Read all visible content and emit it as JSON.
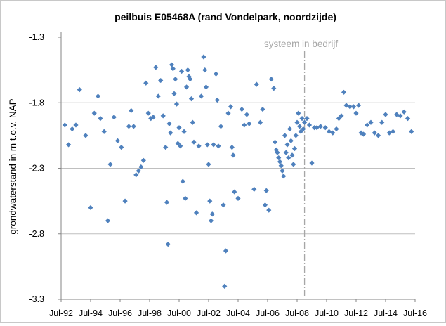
{
  "chart_data": {
    "type": "scatter",
    "title": "peilbuis E05468A (rand Vondelpark, noordzijde)",
    "xlabel": "",
    "ylabel": "grondwaterstand in m t.o.v. NAP",
    "xlim": [
      "1992-07-01",
      "2016-07-01"
    ],
    "ylim": [
      -3.3,
      -1.3
    ],
    "x_ticks": [
      "Jul-92",
      "Jul-94",
      "Jul-96",
      "Jul-98",
      "Jul-00",
      "Jul-02",
      "Jul-04",
      "Jul-06",
      "Jul-08",
      "Jul-10",
      "Jul-12",
      "Jul-14",
      "Jul-16"
    ],
    "y_ticks": [
      -1.3,
      -1.8,
      -2.3,
      -2.8,
      -3.3
    ],
    "y_tick_labels": [
      "-1.3",
      "-1.8",
      "-2.3",
      "-2.8",
      "-3.3"
    ],
    "grid": "horizontal",
    "legend": "none",
    "marker": "diamond",
    "marker_color": "#4f81bd",
    "annotation": {
      "label": "systeem in bedrijf",
      "x": "2009-01-01",
      "line_color": "#a6a6a6",
      "line_style": "dash-dot"
    },
    "series": [
      {
        "points": [
          [
            "1992-10-01",
            -1.97
          ],
          [
            "1993-01-01",
            -2.12
          ],
          [
            "1993-04-01",
            -2.0
          ],
          [
            "1993-07-01",
            -1.97
          ],
          [
            "1993-10-01",
            -1.7
          ],
          [
            "1994-03-01",
            -2.05
          ],
          [
            "1994-07-01",
            -2.6
          ],
          [
            "1994-10-01",
            -1.88
          ],
          [
            "1995-01-01",
            -1.75
          ],
          [
            "1995-03-01",
            -1.92
          ],
          [
            "1995-06-01",
            -2.02
          ],
          [
            "1995-09-01",
            -2.7
          ],
          [
            "1995-11-01",
            -2.27
          ],
          [
            "1996-02-01",
            -1.91
          ],
          [
            "1996-05-01",
            -2.09
          ],
          [
            "1996-08-01",
            -2.14
          ],
          [
            "1996-11-01",
            -2.55
          ],
          [
            "1997-02-01",
            -1.98
          ],
          [
            "1997-04-01",
            -1.86
          ],
          [
            "1997-06-01",
            -1.98
          ],
          [
            "1997-08-01",
            -2.35
          ],
          [
            "1997-10-01",
            -2.32
          ],
          [
            "1997-12-01",
            -2.29
          ],
          [
            "1998-02-01",
            -2.24
          ],
          [
            "1998-04-01",
            -1.65
          ],
          [
            "1998-06-01",
            -1.88
          ],
          [
            "1998-08-01",
            -1.92
          ],
          [
            "1998-10-01",
            -1.91
          ],
          [
            "1998-12-01",
            -1.53
          ],
          [
            "1999-02-01",
            -1.75
          ],
          [
            "1999-04-01",
            -1.63
          ],
          [
            "1999-06-01",
            -1.9
          ],
          [
            "1999-08-01",
            -2.14
          ],
          [
            "1999-09-01",
            -2.56
          ],
          [
            "1999-10-01",
            -2.88
          ],
          [
            "1999-11-01",
            -1.96
          ],
          [
            "1999-12-01",
            -2.03
          ],
          [
            "2000-01-01",
            -1.51
          ],
          [
            "2000-02-01",
            -1.54
          ],
          [
            "2000-03-01",
            -1.73
          ],
          [
            "2000-04-01",
            -1.62
          ],
          [
            "2000-05-01",
            -1.81
          ],
          [
            "2000-06-01",
            -2.11
          ],
          [
            "2000-07-01",
            -1.99
          ],
          [
            "2000-08-01",
            -2.13
          ],
          [
            "2000-09-01",
            -1.56
          ],
          [
            "2000-10-01",
            -2.4
          ],
          [
            "2000-11-01",
            -2.02
          ],
          [
            "2000-12-01",
            -2.53
          ],
          [
            "2001-01-01",
            -1.68
          ],
          [
            "2001-02-01",
            -1.55
          ],
          [
            "2001-03-01",
            -1.6
          ],
          [
            "2001-04-01",
            -1.62
          ],
          [
            "2001-05-01",
            -1.77
          ],
          [
            "2001-06-01",
            -1.95
          ],
          [
            "2001-07-01",
            -2.1
          ],
          [
            "2001-09-01",
            -2.64
          ],
          [
            "2001-11-01",
            -2.13
          ],
          [
            "2002-01-01",
            -1.75
          ],
          [
            "2002-03-01",
            -1.45
          ],
          [
            "2002-04-01",
            -1.55
          ],
          [
            "2002-05-01",
            -1.68
          ],
          [
            "2002-06-01",
            -2.12
          ],
          [
            "2002-07-01",
            -2.27
          ],
          [
            "2002-08-01",
            -2.55
          ],
          [
            "2002-09-01",
            -2.7
          ],
          [
            "2002-10-01",
            -2.65
          ],
          [
            "2002-11-01",
            -2.12
          ],
          [
            "2003-01-01",
            -1.58
          ],
          [
            "2003-02-01",
            -1.78
          ],
          [
            "2003-03-01",
            -2.13
          ],
          [
            "2003-05-01",
            -1.98
          ],
          [
            "2003-07-01",
            -2.58
          ],
          [
            "2003-08-01",
            -3.2
          ],
          [
            "2003-09-01",
            -2.93
          ],
          [
            "2003-11-01",
            -1.88
          ],
          [
            "2004-01-01",
            -1.83
          ],
          [
            "2004-02-01",
            -2.14
          ],
          [
            "2004-03-01",
            -2.2
          ],
          [
            "2004-04-01",
            -2.48
          ],
          [
            "2004-07-01",
            -2.53
          ],
          [
            "2004-10-01",
            -1.85
          ],
          [
            "2004-12-01",
            -1.97
          ],
          [
            "2005-02-01",
            -1.89
          ],
          [
            "2005-04-01",
            -1.96
          ],
          [
            "2005-08-01",
            -2.46
          ],
          [
            "2005-10-01",
            -1.66
          ],
          [
            "2006-01-01",
            -1.95
          ],
          [
            "2006-03-01",
            -1.85
          ],
          [
            "2006-05-01",
            -2.58
          ],
          [
            "2006-06-01",
            -2.47
          ],
          [
            "2006-08-01",
            -2.62
          ],
          [
            "2006-10-01",
            -1.62
          ],
          [
            "2006-12-01",
            -1.69
          ],
          [
            "2007-01-01",
            -2.1
          ],
          [
            "2007-02-01",
            -2.16
          ],
          [
            "2007-03-01",
            -2.18
          ],
          [
            "2007-04-01",
            -2.22
          ],
          [
            "2007-05-01",
            -2.25
          ],
          [
            "2007-06-01",
            -2.28
          ],
          [
            "2007-07-01",
            -2.32
          ],
          [
            "2007-08-01",
            -2.36
          ],
          [
            "2007-09-01",
            -2.05
          ],
          [
            "2007-10-01",
            -2.18
          ],
          [
            "2007-11-01",
            -2.12
          ],
          [
            "2007-12-01",
            -2.22
          ],
          [
            "2008-01-01",
            -2.0
          ],
          [
            "2008-02-01",
            -2.09
          ],
          [
            "2008-03-01",
            -2.2
          ],
          [
            "2008-04-01",
            -2.27
          ],
          [
            "2008-05-01",
            -2.15
          ],
          [
            "2008-06-01",
            -2.05
          ],
          [
            "2008-07-01",
            -1.95
          ],
          [
            "2008-08-01",
            -1.88
          ],
          [
            "2008-09-01",
            -1.98
          ],
          [
            "2008-10-01",
            -2.02
          ],
          [
            "2008-11-01",
            -1.92
          ],
          [
            "2008-12-01",
            -2.0
          ],
          [
            "2009-01-01",
            -1.95
          ],
          [
            "2009-03-01",
            -1.92
          ],
          [
            "2009-05-01",
            -1.97
          ],
          [
            "2009-07-01",
            -2.26
          ],
          [
            "2009-09-01",
            -1.99
          ],
          [
            "2009-11-01",
            -1.99
          ],
          [
            "2010-02-01",
            -1.98
          ],
          [
            "2010-06-01",
            -1.99
          ],
          [
            "2010-09-01",
            -2.02
          ],
          [
            "2010-12-01",
            -2.03
          ],
          [
            "2011-03-01",
            -2.0
          ],
          [
            "2011-05-01",
            -1.92
          ],
          [
            "2011-07-01",
            -1.9
          ],
          [
            "2011-09-01",
            -1.72
          ],
          [
            "2011-11-01",
            -1.82
          ],
          [
            "2012-02-01",
            -1.83
          ],
          [
            "2012-05-01",
            -1.83
          ],
          [
            "2012-07-01",
            -1.88
          ],
          [
            "2012-09-01",
            -1.82
          ],
          [
            "2012-11-01",
            -2.03
          ],
          [
            "2013-01-01",
            -2.04
          ],
          [
            "2013-04-01",
            -1.97
          ],
          [
            "2013-07-01",
            -1.95
          ],
          [
            "2013-10-01",
            -2.03
          ],
          [
            "2014-01-01",
            -2.05
          ],
          [
            "2014-04-01",
            -1.95
          ],
          [
            "2014-07-01",
            -1.89
          ],
          [
            "2014-10-01",
            -2.03
          ],
          [
            "2015-01-01",
            -2.02
          ],
          [
            "2015-04-01",
            -1.89
          ],
          [
            "2015-07-01",
            -1.9
          ],
          [
            "2015-10-01",
            -1.87
          ],
          [
            "2016-01-01",
            -1.92
          ],
          [
            "2016-04-01",
            -2.02
          ]
        ]
      }
    ]
  }
}
